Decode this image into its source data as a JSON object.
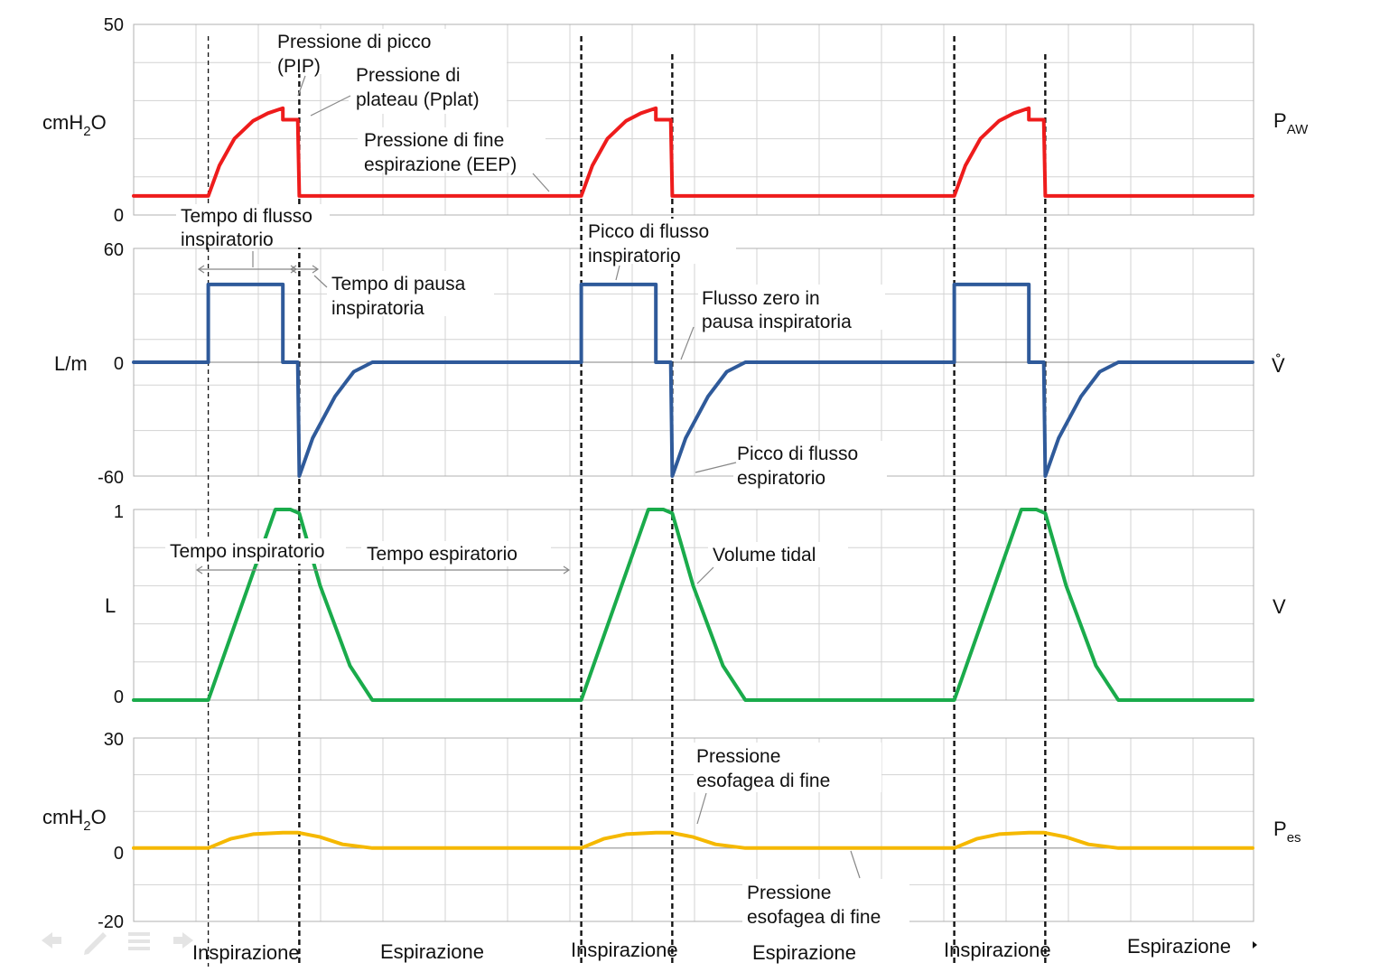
{
  "chart_data": [
    {
      "id": "paw",
      "type": "line",
      "unit_label": "cmH",
      "unit_sub": "2",
      "unit_tail": "O",
      "right_label": "P",
      "right_sub": "AW",
      "ylim": [
        0,
        50
      ],
      "tick_labels": [
        "50",
        "0"
      ],
      "color": "#ee1c1c",
      "series": [
        {
          "x": [
            0,
            1.0,
            1.15,
            1.35,
            1.6,
            1.8,
            1.95,
            2.0,
            2.0,
            2.2,
            2.22,
            2.95,
            5.0
          ],
          "y": [
            5,
            5,
            13,
            20,
            24.7,
            26.7,
            27.7,
            28,
            25,
            25,
            5,
            5,
            5
          ]
        }
      ],
      "annotations": [
        {
          "lines": [
            "Pressione di picco",
            "(PIP)"
          ]
        },
        {
          "lines": [
            "Pressione di",
            "plateau (Pplat)"
          ]
        },
        {
          "lines": [
            "Pressione di fine",
            "espirazione (EEP)"
          ]
        }
      ]
    },
    {
      "id": "flow",
      "type": "line",
      "unit_label": "L/m",
      "right_label": "V̊",
      "ylim": [
        -60,
        60
      ],
      "tick_labels": [
        "60",
        "0",
        "-60"
      ],
      "color": "#2f5a9a",
      "series": [
        {
          "x": [
            0,
            1.0,
            1.0,
            2.0,
            2.0,
            2.2,
            2.22,
            2.4,
            2.7,
            2.95,
            3.2,
            5.0
          ],
          "y": [
            0,
            0,
            41,
            41,
            0,
            0,
            -60,
            -40,
            -18,
            -5,
            0,
            0
          ]
        }
      ],
      "annotations": [
        {
          "lines": [
            "Tempo di flusso",
            "inspiratorio"
          ]
        },
        {
          "lines": [
            "Tempo di pausa",
            "inspiratoria"
          ]
        },
        {
          "lines": [
            "Picco di flusso",
            "inspiratorio"
          ]
        },
        {
          "lines": [
            "Flusso zero in",
            "pausa inspiratoria"
          ]
        },
        {
          "lines": [
            "Picco di flusso",
            "espiratorio"
          ]
        }
      ]
    },
    {
      "id": "volume",
      "type": "line",
      "unit_label": "L",
      "right_label": "V",
      "ylim": [
        0,
        1
      ],
      "tick_labels": [
        "1",
        "0"
      ],
      "color": "#1aab4b",
      "series": [
        {
          "x": [
            0,
            1.0,
            1.9,
            2.1,
            2.22,
            2.5,
            2.9,
            3.2,
            5.0
          ],
          "y": [
            0,
            0,
            1.0,
            1.0,
            0.98,
            0.6,
            0.18,
            0,
            0
          ]
        }
      ],
      "annotations": [
        {
          "lines": [
            "Tempo inspiratorio"
          ]
        },
        {
          "lines": [
            "Tempo espiratorio"
          ]
        },
        {
          "lines": [
            "Volume tidal"
          ]
        }
      ]
    },
    {
      "id": "pes",
      "type": "line",
      "unit_label": "cmH",
      "unit_sub": "2",
      "unit_tail": "O",
      "right_label": "P",
      "right_sub": "es",
      "ylim": [
        -20,
        30
      ],
      "tick_labels": [
        "30",
        "0",
        "-20"
      ],
      "color": "#f5b800",
      "series": [
        {
          "x": [
            0,
            1.0,
            1.3,
            1.6,
            2.0,
            2.2,
            2.5,
            2.8,
            3.2,
            5.0
          ],
          "y": [
            0,
            0,
            2.5,
            3.8,
            4.2,
            4.2,
            3.0,
            1.0,
            0,
            0
          ]
        }
      ],
      "annotations": [
        {
          "lines": [
            "Pressione",
            "esofagea di fine"
          ]
        },
        {
          "lines": [
            "Pressione",
            "esofagea di fine"
          ]
        }
      ]
    }
  ],
  "phases": [
    "Inspirazione",
    "Espirazione",
    "Inspirazione",
    "Espirazione",
    "Inspirazione",
    "Espirazione"
  ]
}
